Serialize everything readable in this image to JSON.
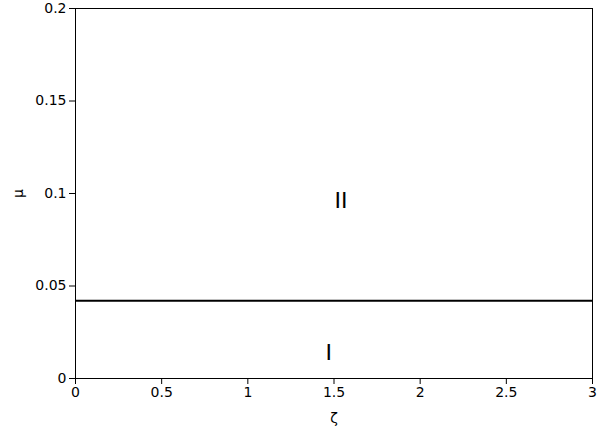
{
  "chart_data": {
    "type": "line",
    "x_label": "ζ",
    "y_label": "μ",
    "x": [
      0,
      3
    ],
    "series": [
      {
        "color": "#000000",
        "values": [
          0.042,
          0.042
        ]
      }
    ],
    "xlim": [
      0,
      3
    ],
    "xticks": [
      0,
      0.5,
      1,
      1.5,
      2,
      2.5,
      3
    ],
    "ylim": [
      0,
      0.2
    ],
    "yticks": [
      0,
      0.05,
      0.1,
      0.15,
      0.2
    ],
    "annotations": [
      {
        "text": "I",
        "x": 1.47,
        "y": 0.014
      },
      {
        "text": "II",
        "x": 1.54,
        "y": 0.096
      }
    ],
    "grid": false
  }
}
